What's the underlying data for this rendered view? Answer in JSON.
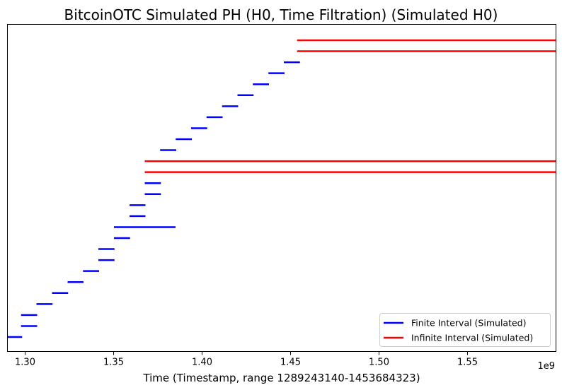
{
  "chart_data": {
    "type": "barcode",
    "title": "BitcoinOTC Simulated PH (H0, Time Filtration) (Simulated H0)",
    "xlabel": "Time (Timestamp, range 1289243140-1453684323)",
    "ylabel": "",
    "x_scale_note": "1e9",
    "xlim": [
      1.29,
      1.6
    ],
    "xticks": [
      1.3,
      1.35,
      1.4,
      1.45,
      1.5,
      1.55
    ],
    "xtick_labels": [
      "1.30",
      "1.35",
      "1.40",
      "1.45",
      "1.50",
      "1.55"
    ],
    "grid": false,
    "legend_position": "bottom-right",
    "series": [
      {
        "name": "Finite Interval (Simulated)",
        "color": "#0000ff"
      },
      {
        "name": "Infinite Interval (Simulated)",
        "color": "#ff0000"
      }
    ],
    "intervals": [
      {
        "birth": 1.2892,
        "death": 1.2983,
        "infinite": false
      },
      {
        "birth": 1.2977,
        "death": 1.3068,
        "infinite": false
      },
      {
        "birth": 1.2977,
        "death": 1.3068,
        "infinite": false
      },
      {
        "birth": 1.3064,
        "death": 1.3155,
        "infinite": false
      },
      {
        "birth": 1.3152,
        "death": 1.3243,
        "infinite": false
      },
      {
        "birth": 1.324,
        "death": 1.333,
        "infinite": false
      },
      {
        "birth": 1.3327,
        "death": 1.3418,
        "infinite": false
      },
      {
        "birth": 1.3414,
        "death": 1.3505,
        "infinite": false
      },
      {
        "birth": 1.3414,
        "death": 1.3505,
        "infinite": false
      },
      {
        "birth": 1.3502,
        "death": 1.3593,
        "infinite": false
      },
      {
        "birth": 1.3502,
        "death": 1.385,
        "infinite": false
      },
      {
        "birth": 1.359,
        "death": 1.368,
        "infinite": false
      },
      {
        "birth": 1.359,
        "death": 1.368,
        "infinite": false
      },
      {
        "birth": 1.3676,
        "death": 1.3767,
        "infinite": false
      },
      {
        "birth": 1.3676,
        "death": 1.3767,
        "infinite": false
      },
      {
        "birth": 1.3676,
        "death": null,
        "infinite": true
      },
      {
        "birth": 1.3676,
        "death": null,
        "infinite": true
      },
      {
        "birth": 1.3763,
        "death": 1.3854,
        "infinite": false
      },
      {
        "birth": 1.3851,
        "death": 1.3942,
        "infinite": false
      },
      {
        "birth": 1.3938,
        "death": 1.4029,
        "infinite": false
      },
      {
        "birth": 1.4025,
        "death": 1.4116,
        "infinite": false
      },
      {
        "birth": 1.4113,
        "death": 1.4204,
        "infinite": false
      },
      {
        "birth": 1.42,
        "death": 1.4291,
        "infinite": false
      },
      {
        "birth": 1.4287,
        "death": 1.4378,
        "infinite": false
      },
      {
        "birth": 1.4375,
        "death": 1.4466,
        "infinite": false
      },
      {
        "birth": 1.4462,
        "death": 1.4553,
        "infinite": false
      },
      {
        "birth": 1.4537,
        "death": null,
        "infinite": true
      },
      {
        "birth": 1.4537,
        "death": null,
        "infinite": true
      }
    ]
  }
}
